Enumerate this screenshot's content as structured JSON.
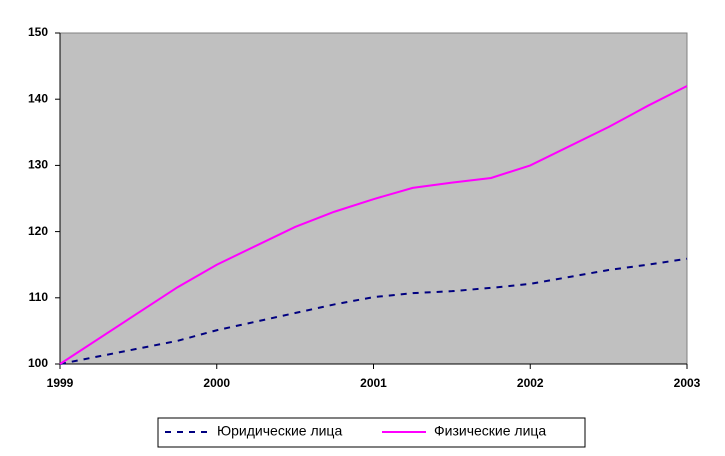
{
  "chart_data": {
    "type": "line",
    "x": [
      1999,
      1999.75,
      2000,
      2000.5,
      2000.75,
      2001,
      2001.25,
      2001.5,
      2001.75,
      2002,
      2002.5,
      2002.75,
      2003
    ],
    "series": [
      {
        "name": "Юридические лица",
        "color": "#000080",
        "dashed": true,
        "values": [
          100,
          103.5,
          105.1,
          107.7,
          109,
          110.1,
          110.7,
          111,
          111.5,
          112.1,
          114.2,
          115,
          115.9
        ]
      },
      {
        "name": "Физические лица",
        "color": "#ff00ff",
        "dashed": false,
        "values": [
          100,
          111.6,
          115,
          120.7,
          123,
          124.9,
          126.6,
          127.4,
          128.1,
          130,
          135.8,
          139,
          142
        ]
      }
    ],
    "xlim": [
      1999,
      2003
    ],
    "xticks": [
      1999,
      2000,
      2001,
      2002,
      2003
    ],
    "ylim": [
      100,
      150
    ],
    "yticks": [
      100,
      110,
      120,
      130,
      140,
      150
    ],
    "grid": false,
    "legend": "bottom",
    "background": "#c0c0c0"
  }
}
